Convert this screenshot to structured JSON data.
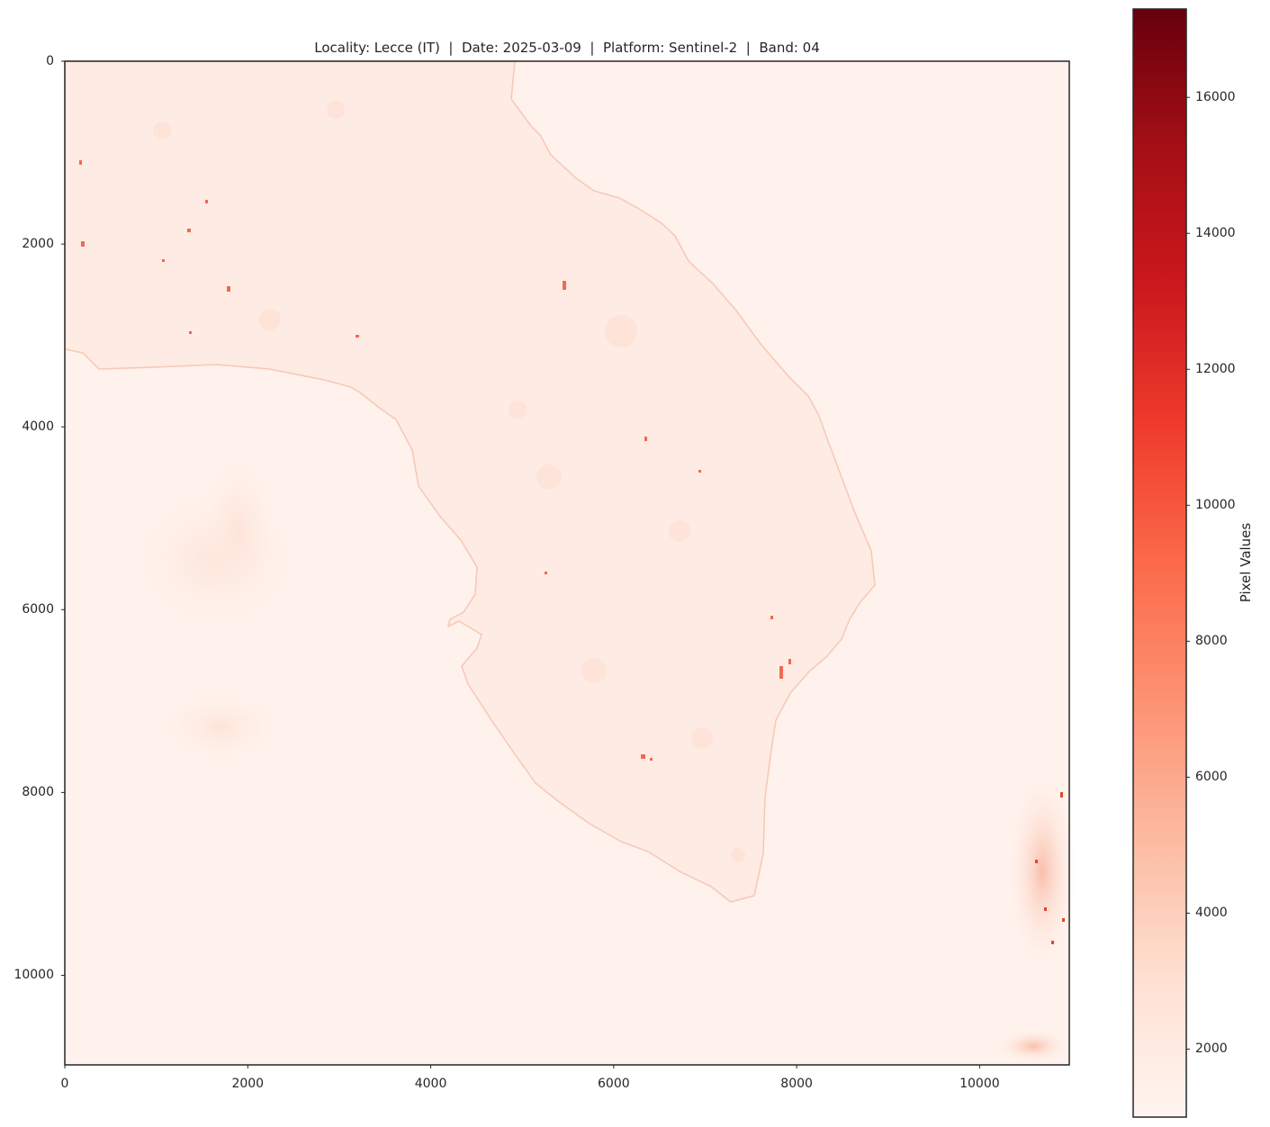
{
  "title": "Locality: Lecce (IT)  |  Date: 2025-03-09  |  Platform: Sentinel-2  |  Band: 04",
  "map": {
    "type": "raster",
    "colormap": "Reds",
    "x_range": [
      0,
      10980
    ],
    "y_range": [
      0,
      10980
    ],
    "y_inverted": true,
    "grid": false,
    "x_ticks": [
      "0",
      "2000",
      "4000",
      "6000",
      "8000",
      "10000"
    ],
    "y_ticks": [
      "0",
      "2000",
      "4000",
      "6000",
      "8000",
      "10000"
    ],
    "x_tick_values": [
      0,
      2000,
      4000,
      6000,
      8000,
      10000
    ],
    "y_tick_values": [
      0,
      2000,
      4000,
      6000,
      8000,
      10000
    ]
  },
  "colorbar": {
    "label": "Pixel Values",
    "range": [
      1000,
      17300
    ],
    "ticks": [
      "2000",
      "4000",
      "6000",
      "8000",
      "10000",
      "12000",
      "14000",
      "16000"
    ],
    "tick_values": [
      2000,
      4000,
      6000,
      8000,
      10000,
      12000,
      14000,
      16000
    ],
    "colors": [
      "#fff5f0",
      "#fee0d2",
      "#fcbba1",
      "#fc9272",
      "#fb6a4a",
      "#ef3b2c",
      "#cb181d",
      "#a50f15",
      "#67000d"
    ]
  },
  "colors": {
    "sea": "#fff1eb",
    "land": "#feebe3",
    "frame": "#262626"
  }
}
